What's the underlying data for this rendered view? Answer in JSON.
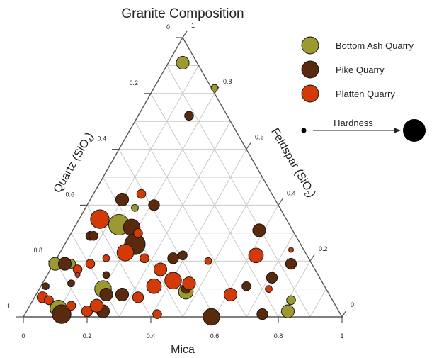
{
  "chart_data": {
    "type": "scatter",
    "subtype": "ternary-bubble",
    "title": "Granite Composition",
    "axes": {
      "bottom": {
        "label": "Mica",
        "ticks": [
          "0",
          "0.2",
          "0.4",
          "0.6",
          "0.8",
          "1"
        ]
      },
      "left": {
        "label": "Quartz (SiO",
        "sub": "4",
        "tail": ")",
        "ticks": [
          "1",
          "0.8",
          "0.6",
          "0.4",
          "0.2",
          "0"
        ]
      },
      "right": {
        "label": "Feldspar (SiO",
        "sub": "2",
        "tail": ")",
        "ticks": [
          "1",
          "0.8",
          "0.6",
          "0.4",
          "0.2",
          "0"
        ]
      }
    },
    "size_legend": {
      "label": "Hardness",
      "min": 1,
      "max": 10
    },
    "series": [
      {
        "name": "Bottom Ash Quarry",
        "color": "#9a9a30",
        "points": [
          {
            "mica": 0.1,
            "quartz": 0.81,
            "hardness": 5
          },
          {
            "mica": 0.3,
            "quartz": 0.67,
            "hardness": 9
          },
          {
            "mica": 0.15,
            "quartz": 0.81,
            "hardness": 3
          },
          {
            "mica": 0.5,
            "quartz": 0.09,
            "hardness": 5
          },
          {
            "mica": 0.6,
            "quartz": 0.18,
            "hardness": 2
          },
          {
            "mica": 0.35,
            "quartz": 0.61,
            "hardness": 2
          },
          {
            "mica": 0.11,
            "quartz": 0.97,
            "hardness": 7
          },
          {
            "mica": 0.25,
            "quartz": 0.9,
            "hardness": 7
          },
          {
            "mica": 0.51,
            "quartz": 0.91,
            "hardness": 6
          },
          {
            "mica": 0.83,
            "quartz": 0.98,
            "hardness": 5
          },
          {
            "mica": 0.84,
            "quartz": 0.94,
            "hardness": 3
          }
        ]
      },
      {
        "name": "Pike Quarry",
        "color": "#5a2a0e",
        "points": [
          {
            "mica": 0.52,
            "quartz": 0.28,
            "hardness": 3
          },
          {
            "mica": 0.31,
            "quartz": 0.58,
            "hardness": 5
          },
          {
            "mica": 0.41,
            "quartz": 0.6,
            "hardness": 4
          },
          {
            "mica": 0.34,
            "quartz": 0.68,
            "hardness": 7
          },
          {
            "mica": 0.21,
            "quartz": 0.71,
            "hardness": 3
          },
          {
            "mica": 0.22,
            "quartz": 0.71,
            "hardness": 3
          },
          {
            "mica": 0.13,
            "quartz": 0.81,
            "hardness": 5
          },
          {
            "mica": 0.35,
            "quartz": 0.74,
            "hardness": 9
          },
          {
            "mica": 0.47,
            "quartz": 0.79,
            "hardness": 4
          },
          {
            "mica": 0.5,
            "quartz": 0.78,
            "hardness": 3
          },
          {
            "mica": 0.51,
            "quartz": 0.9,
            "hardness": 3
          },
          {
            "mica": 0.74,
            "quartz": 0.69,
            "hardness": 5
          },
          {
            "mica": 0.78,
            "quartz": 0.86,
            "hardness": 4
          },
          {
            "mica": 0.84,
            "quartz": 0.81,
            "hardness": 4
          },
          {
            "mica": 0.07,
            "quartz": 0.89,
            "hardness": 2
          },
          {
            "mica": 0.12,
            "quartz": 0.99,
            "hardness": 8
          },
          {
            "mica": 0.15,
            "quartz": 0.88,
            "hardness": 2
          },
          {
            "mica": 0.25,
            "quartz": 0.98,
            "hardness": 5
          },
          {
            "mica": 0.26,
            "quartz": 0.92,
            "hardness": 5
          },
          {
            "mica": 0.26,
            "quartz": 0.85,
            "hardness": 2
          },
          {
            "mica": 0.31,
            "quartz": 0.92,
            "hardness": 5
          },
          {
            "mica": 0.59,
            "quartz": 1.0,
            "hardness": 7
          },
          {
            "mica": 0.7,
            "quartz": 0.89,
            "hardness": 3
          },
          {
            "mica": 0.75,
            "quartz": 0.99,
            "hardness": 4
          }
        ]
      },
      {
        "name": "Platten Quarry",
        "color": "#d23a08",
        "points": [
          {
            "mica": 0.37,
            "quartz": 0.56,
            "hardness": 3
          },
          {
            "mica": 0.24,
            "quartz": 0.65,
            "hardness": 8
          },
          {
            "mica": 0.36,
            "quartz": 0.7,
            "hardness": 3
          },
          {
            "mica": 0.32,
            "quartz": 0.77,
            "hardness": 7
          },
          {
            "mica": 0.17,
            "quartz": 0.83,
            "hardness": 3
          },
          {
            "mica": 0.21,
            "quartz": 0.81,
            "hardness": 3
          },
          {
            "mica": 0.26,
            "quartz": 0.79,
            "hardness": 2
          },
          {
            "mica": 0.43,
            "quartz": 0.83,
            "hardness": 5
          },
          {
            "mica": 0.47,
            "quartz": 0.87,
            "hardness": 7
          },
          {
            "mica": 0.52,
            "quartz": 0.88,
            "hardness": 5
          },
          {
            "mica": 0.58,
            "quartz": 0.8,
            "hardness": 2
          },
          {
            "mica": 0.41,
            "quartz": 0.89,
            "hardness": 6
          },
          {
            "mica": 0.38,
            "quartz": 0.79,
            "hardness": 3
          },
          {
            "mica": 0.36,
            "quartz": 0.93,
            "hardness": 4
          },
          {
            "mica": 0.42,
            "quartz": 0.99,
            "hardness": 3
          },
          {
            "mica": 0.65,
            "quartz": 0.92,
            "hardness": 5
          },
          {
            "mica": 0.73,
            "quartz": 0.78,
            "hardness": 6
          },
          {
            "mica": 0.77,
            "quartz": 0.9,
            "hardness": 2
          },
          {
            "mica": 0.84,
            "quartz": 0.76,
            "hardness": 1
          },
          {
            "mica": 0.06,
            "quartz": 0.93,
            "hardness": 4
          },
          {
            "mica": 0.08,
            "quartz": 0.94,
            "hardness": 3
          },
          {
            "mica": 0.15,
            "quartz": 0.96,
            "hardness": 3
          },
          {
            "mica": 0.17,
            "quartz": 0.85,
            "hardness": 1
          },
          {
            "mica": 0.2,
            "quartz": 0.98,
            "hardness": 4
          },
          {
            "mica": 0.23,
            "quartz": 0.96,
            "hardness": 5
          }
        ]
      }
    ]
  }
}
